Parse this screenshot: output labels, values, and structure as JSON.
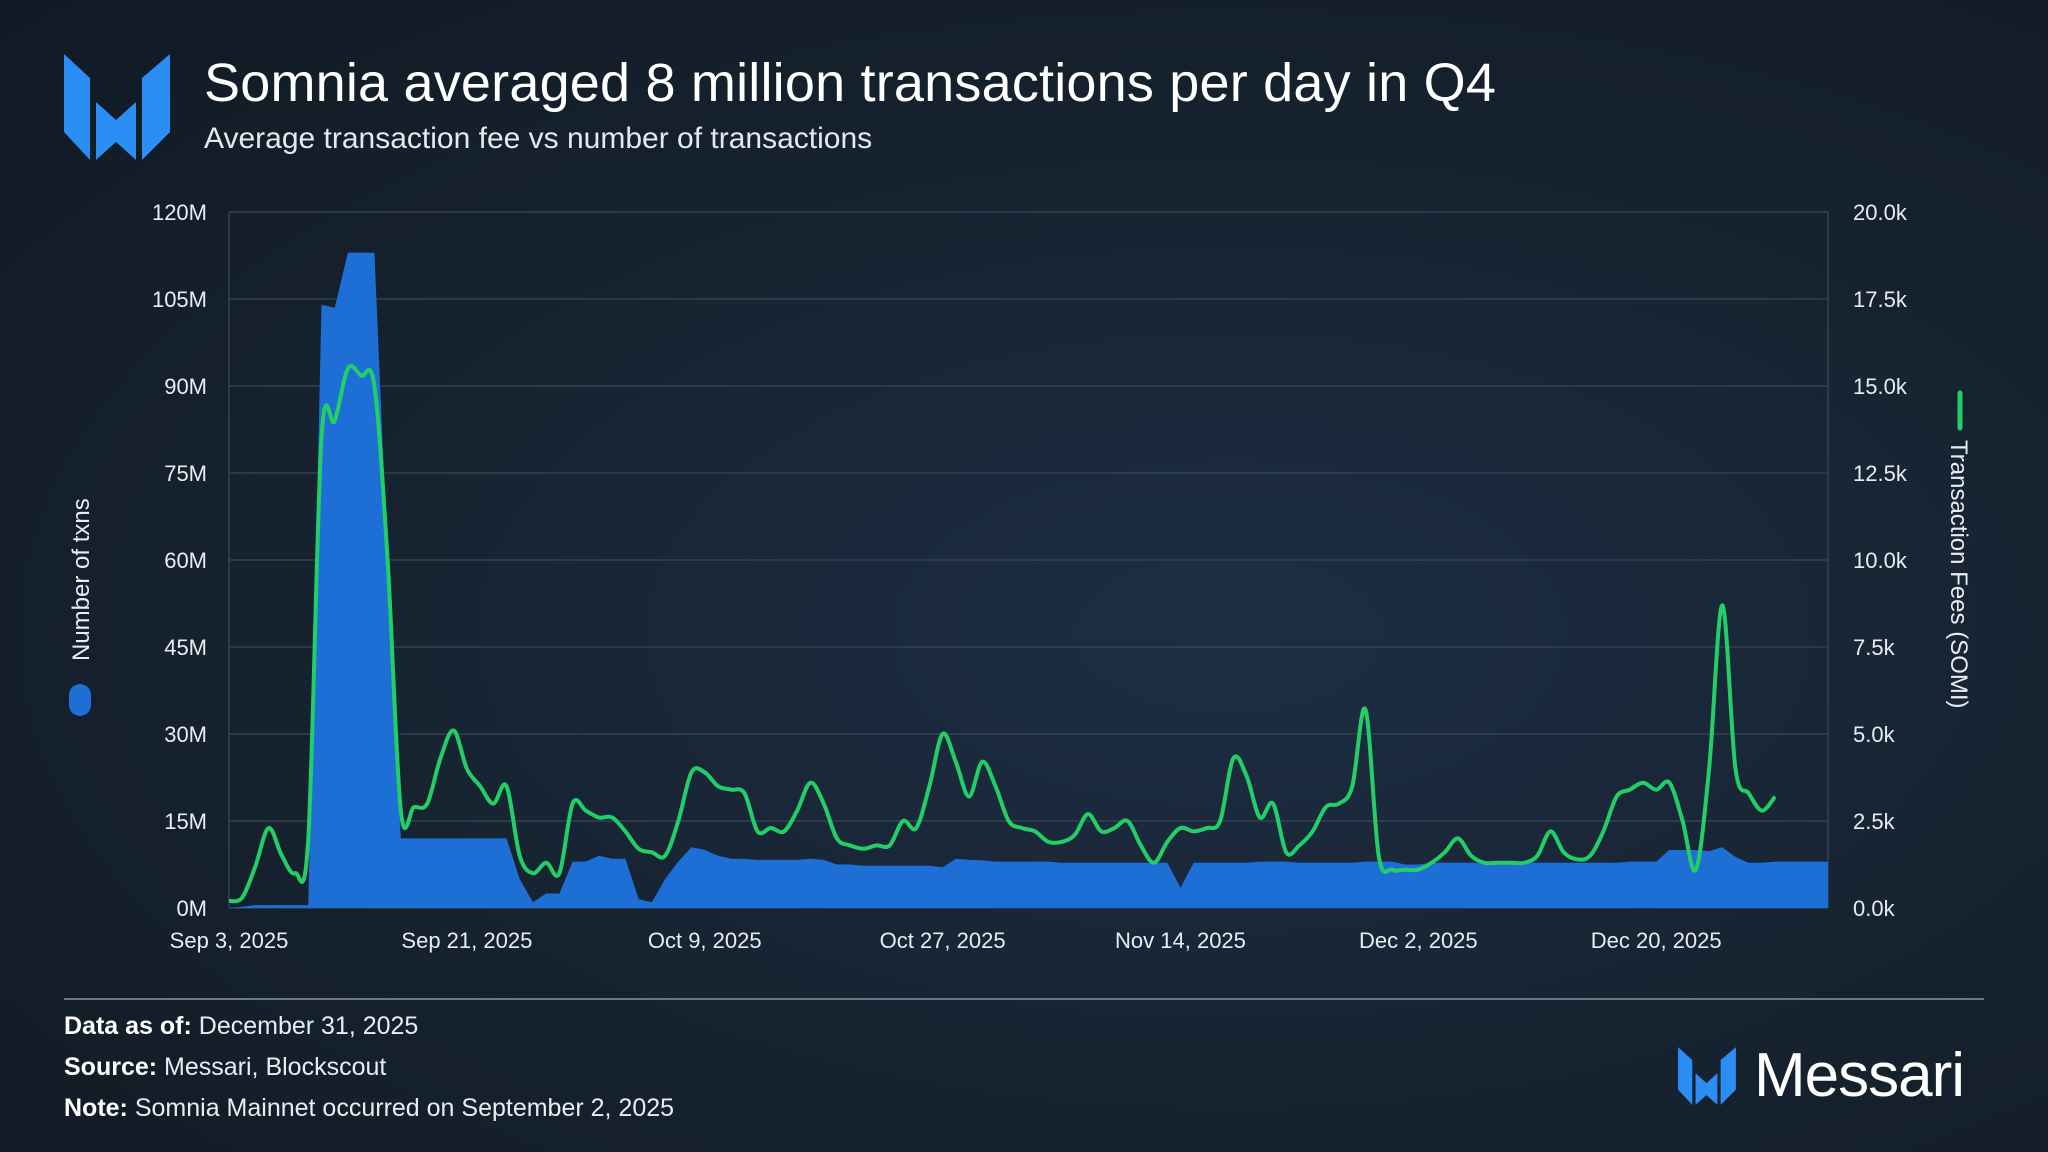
{
  "title": "Somnia averaged 8 million transactions per day in Q4",
  "subtitle": "Average transaction fee vs number of transactions",
  "colors": {
    "bars": "#1d6fd6",
    "line": "#21cf66",
    "grid": "#3a4656",
    "logo": "#2a8ef5"
  },
  "chart_data": {
    "type": "area+line",
    "x_range": [
      "Sep 3, 2025",
      "Dec 31, 2025"
    ],
    "x_ticks": [
      {
        "day": 0,
        "label": "Sep 3, 2025"
      },
      {
        "day": 18,
        "label": "Sep 21, 2025"
      },
      {
        "day": 36,
        "label": "Oct 9, 2025"
      },
      {
        "day": 54,
        "label": "Oct 27, 2025"
      },
      {
        "day": 72,
        "label": "Nov 14, 2025"
      },
      {
        "day": 90,
        "label": "Dec 2, 2025"
      },
      {
        "day": 108,
        "label": "Dec 20, 2025"
      }
    ],
    "y_left": {
      "label": "Number of txns",
      "min": 0,
      "max": 120,
      "ticks": [
        0,
        15,
        30,
        45,
        60,
        75,
        90,
        105,
        120
      ],
      "tick_labels": [
        "0M",
        "15M",
        "30M",
        "45M",
        "60M",
        "75M",
        "90M",
        "105M",
        "120M"
      ]
    },
    "y_right": {
      "label": "Transaction Fees (SOMI)",
      "min": 0,
      "max": 20,
      "ticks": [
        0,
        2.5,
        5,
        7.5,
        10,
        12.5,
        15,
        17.5,
        20
      ],
      "tick_labels": [
        "0.0k",
        "2.5k",
        "5.0k",
        "7.5k",
        "10.0k",
        "12.5k",
        "15.0k",
        "17.5k",
        "20.0k"
      ]
    },
    "series": [
      {
        "name": "Number of txns",
        "axis": "left",
        "unit": "M",
        "style": "area",
        "points": [
          [
            0,
            0
          ],
          [
            1,
            0.2
          ],
          [
            2,
            0.5
          ],
          [
            3,
            0.5
          ],
          [
            4,
            0.5
          ],
          [
            5,
            0.5
          ],
          [
            6,
            0.5
          ],
          [
            7,
            104
          ],
          [
            8,
            103.5
          ],
          [
            9,
            113
          ],
          [
            10,
            113
          ],
          [
            11,
            113
          ],
          [
            12,
            60
          ],
          [
            13,
            12
          ],
          [
            14,
            12
          ],
          [
            15,
            12
          ],
          [
            16,
            12
          ],
          [
            17,
            12
          ],
          [
            18,
            12
          ],
          [
            19,
            12
          ],
          [
            20,
            12
          ],
          [
            21,
            12
          ],
          [
            22,
            5
          ],
          [
            23,
            1
          ],
          [
            24,
            2.5
          ],
          [
            25,
            2.5
          ],
          [
            26,
            8
          ],
          [
            27,
            8
          ],
          [
            28,
            9
          ],
          [
            29,
            8.5
          ],
          [
            30,
            8.5
          ],
          [
            31,
            1.5
          ],
          [
            32,
            1
          ],
          [
            33,
            5
          ],
          [
            34,
            8
          ],
          [
            35,
            10.5
          ],
          [
            36,
            10
          ],
          [
            37,
            9
          ],
          [
            38,
            8.5
          ],
          [
            39,
            8.5
          ],
          [
            40,
            8.3
          ],
          [
            41,
            8.3
          ],
          [
            42,
            8.3
          ],
          [
            43,
            8.3
          ],
          [
            44,
            8.5
          ],
          [
            45,
            8.3
          ],
          [
            46,
            7.5
          ],
          [
            47,
            7.5
          ],
          [
            48,
            7.3
          ],
          [
            49,
            7.3
          ],
          [
            50,
            7.3
          ],
          [
            51,
            7.3
          ],
          [
            52,
            7.3
          ],
          [
            53,
            7.3
          ],
          [
            54,
            7
          ],
          [
            55,
            8.5
          ],
          [
            56,
            8.3
          ],
          [
            57,
            8.2
          ],
          [
            58,
            8
          ],
          [
            59,
            8
          ],
          [
            60,
            8
          ],
          [
            61,
            8
          ],
          [
            62,
            8
          ],
          [
            63,
            7.8
          ],
          [
            64,
            7.8
          ],
          [
            65,
            7.8
          ],
          [
            66,
            7.8
          ],
          [
            67,
            7.8
          ],
          [
            68,
            7.8
          ],
          [
            69,
            7.8
          ],
          [
            70,
            7.8
          ],
          [
            71,
            7.8
          ],
          [
            72,
            3.5
          ],
          [
            73,
            7.8
          ],
          [
            74,
            7.8
          ],
          [
            75,
            7.8
          ],
          [
            76,
            7.8
          ],
          [
            77,
            7.8
          ],
          [
            78,
            8
          ],
          [
            79,
            8
          ],
          [
            80,
            8
          ],
          [
            81,
            7.8
          ],
          [
            82,
            7.8
          ],
          [
            83,
            7.8
          ],
          [
            84,
            7.8
          ],
          [
            85,
            7.8
          ],
          [
            86,
            8
          ],
          [
            87,
            8
          ],
          [
            88,
            8
          ],
          [
            89,
            7.5
          ],
          [
            90,
            7.5
          ],
          [
            91,
            7.8
          ],
          [
            92,
            7.8
          ],
          [
            93,
            7.8
          ],
          [
            94,
            7.8
          ],
          [
            95,
            7.8
          ],
          [
            96,
            7.8
          ],
          [
            97,
            7.8
          ],
          [
            98,
            7.8
          ],
          [
            99,
            7.8
          ],
          [
            100,
            7.8
          ],
          [
            101,
            7.8
          ],
          [
            102,
            7.8
          ],
          [
            103,
            7.8
          ],
          [
            104,
            7.8
          ],
          [
            105,
            7.8
          ],
          [
            106,
            8
          ],
          [
            107,
            8
          ],
          [
            108,
            8
          ],
          [
            109,
            10
          ],
          [
            110,
            10
          ],
          [
            111,
            10
          ],
          [
            112,
            9.8
          ],
          [
            113,
            10.5
          ],
          [
            114,
            8.8
          ],
          [
            115,
            7.8
          ],
          [
            116,
            7.8
          ],
          [
            117,
            8
          ],
          [
            118,
            8
          ],
          [
            119,
            8
          ],
          [
            120,
            8
          ],
          [
            121,
            8
          ]
        ]
      },
      {
        "name": "Transaction Fees (SOMI)",
        "axis": "right",
        "unit": "k",
        "style": "line",
        "points": [
          [
            0,
            0.2
          ],
          [
            1,
            0.3
          ],
          [
            2,
            1.2
          ],
          [
            3,
            2.3
          ],
          [
            4,
            1.5
          ],
          [
            5,
            1
          ],
          [
            6,
            2
          ],
          [
            7,
            13.5
          ],
          [
            8,
            14
          ],
          [
            9,
            15.5
          ],
          [
            10,
            15.3
          ],
          [
            11,
            15
          ],
          [
            12,
            10
          ],
          [
            13,
            2.8
          ],
          [
            14,
            2.9
          ],
          [
            15,
            3
          ],
          [
            16,
            4.3
          ],
          [
            17,
            5.1
          ],
          [
            18,
            4
          ],
          [
            19,
            3.5
          ],
          [
            20,
            3
          ],
          [
            21,
            3.5
          ],
          [
            22,
            1.5
          ],
          [
            23,
            1
          ],
          [
            24,
            1.3
          ],
          [
            25,
            1
          ],
          [
            26,
            3
          ],
          [
            27,
            2.8
          ],
          [
            28,
            2.6
          ],
          [
            29,
            2.6
          ],
          [
            30,
            2.2
          ],
          [
            31,
            1.7
          ],
          [
            32,
            1.6
          ],
          [
            33,
            1.5
          ],
          [
            34,
            2.5
          ],
          [
            35,
            3.9
          ],
          [
            36,
            3.9
          ],
          [
            37,
            3.5
          ],
          [
            38,
            3.4
          ],
          [
            39,
            3.3
          ],
          [
            40,
            2.2
          ],
          [
            41,
            2.3
          ],
          [
            42,
            2.2
          ],
          [
            43,
            2.8
          ],
          [
            44,
            3.6
          ],
          [
            45,
            3
          ],
          [
            46,
            2
          ],
          [
            47,
            1.8
          ],
          [
            48,
            1.7
          ],
          [
            49,
            1.8
          ],
          [
            50,
            1.8
          ],
          [
            51,
            2.5
          ],
          [
            52,
            2.3
          ],
          [
            53,
            3.5
          ],
          [
            54,
            5
          ],
          [
            55,
            4.2
          ],
          [
            56,
            3.2
          ],
          [
            57,
            4.2
          ],
          [
            58,
            3.5
          ],
          [
            59,
            2.5
          ],
          [
            60,
            2.3
          ],
          [
            61,
            2.2
          ],
          [
            62,
            1.9
          ],
          [
            63,
            1.9
          ],
          [
            64,
            2.1
          ],
          [
            65,
            2.7
          ],
          [
            66,
            2.2
          ],
          [
            67,
            2.3
          ],
          [
            68,
            2.5
          ],
          [
            69,
            1.8
          ],
          [
            70,
            1.3
          ],
          [
            71,
            1.9
          ],
          [
            72,
            2.3
          ],
          [
            73,
            2.2
          ],
          [
            74,
            2.3
          ],
          [
            75,
            2.5
          ],
          [
            76,
            4.3
          ],
          [
            77,
            3.8
          ],
          [
            78,
            2.6
          ],
          [
            79,
            3
          ],
          [
            80,
            1.6
          ],
          [
            81,
            1.8
          ],
          [
            82,
            2.2
          ],
          [
            83,
            2.9
          ],
          [
            84,
            3
          ],
          [
            85,
            3.5
          ],
          [
            86,
            5.7
          ],
          [
            87,
            1.5
          ],
          [
            88,
            1.1
          ],
          [
            89,
            1.1
          ],
          [
            90,
            1.1
          ],
          [
            91,
            1.3
          ],
          [
            92,
            1.6
          ],
          [
            93,
            2
          ],
          [
            94,
            1.5
          ],
          [
            95,
            1.3
          ],
          [
            96,
            1.3
          ],
          [
            97,
            1.3
          ],
          [
            98,
            1.3
          ],
          [
            99,
            1.5
          ],
          [
            100,
            2.2
          ],
          [
            101,
            1.6
          ],
          [
            102,
            1.4
          ],
          [
            103,
            1.5
          ],
          [
            104,
            2.2
          ],
          [
            105,
            3.2
          ],
          [
            106,
            3.4
          ],
          [
            107,
            3.6
          ],
          [
            108,
            3.4
          ],
          [
            109,
            3.6
          ],
          [
            110,
            2.5
          ],
          [
            111,
            1.1
          ],
          [
            112,
            4
          ],
          [
            113,
            8.7
          ],
          [
            114,
            4
          ],
          [
            115,
            3.3
          ],
          [
            116,
            2.8
          ],
          [
            117,
            3.2
          ]
        ]
      }
    ],
    "legend": "axis-labels"
  },
  "footer": {
    "as_of_label": "Data as of:",
    "as_of_value": " December 31, 2025",
    "source_label": "Source:",
    "source_value": " Messari, Blockscout",
    "note_label": "Note:",
    "note_value": " Somnia Mainnet occurred on September 2, 2025"
  },
  "brand": {
    "name": "Messari",
    "logo_icon": "messari-logo-icon"
  }
}
